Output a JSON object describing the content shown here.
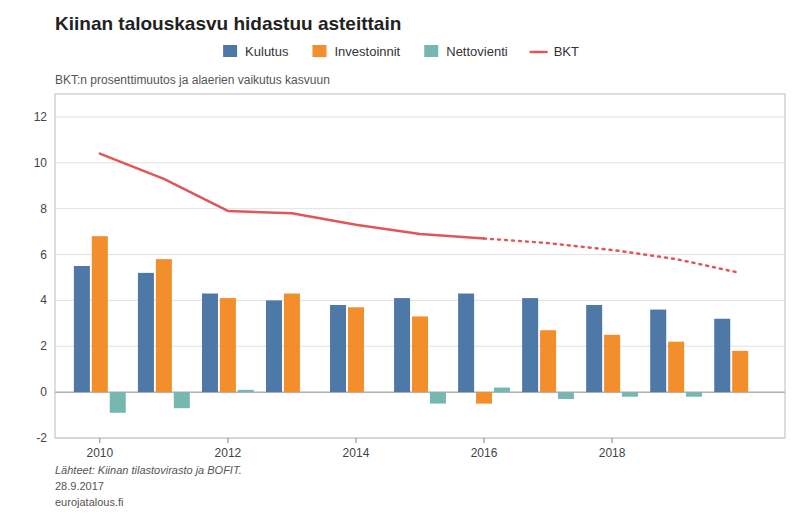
{
  "chart_data": {
    "type": "bar",
    "title": "Kiinan talouskasvu hidastuu asteittain",
    "subtitle": "BKT:n prosenttimuutos ja alaerien vaikutus kasvuun",
    "x": [
      2010,
      2011,
      2012,
      2013,
      2014,
      2015,
      2016,
      2017,
      2018,
      2019,
      2020
    ],
    "xlim": [
      2009.3,
      2020.7
    ],
    "xticks": [
      2010,
      2012,
      2014,
      2016,
      2018
    ],
    "ylim": [
      -2,
      13
    ],
    "yticks": [
      -2,
      0,
      2,
      4,
      6,
      8,
      10,
      12
    ],
    "grid": true,
    "legend": "top",
    "series": [
      {
        "name": "Kulutus",
        "type": "bar",
        "color": "#4e79a7",
        "values": [
          5.5,
          5.2,
          4.3,
          4.0,
          3.8,
          4.1,
          4.3,
          4.1,
          3.8,
          3.6,
          3.2
        ]
      },
      {
        "name": "Investoinnit",
        "type": "bar",
        "color": "#f28e2b",
        "values": [
          6.8,
          5.8,
          4.1,
          4.3,
          3.7,
          3.3,
          -0.5,
          2.7,
          2.5,
          2.2,
          1.8
        ]
      },
      {
        "name": "Nettovienti",
        "type": "bar",
        "color": "#76b7b2",
        "values": [
          -0.9,
          -0.7,
          0.1,
          0.0,
          0.0,
          -0.5,
          0.2,
          -0.3,
          -0.2,
          -0.2,
          0.0
        ]
      },
      {
        "name": "BKT",
        "type": "line",
        "color": "#e15759",
        "line_style": "solid",
        "x": [
          2010,
          2011,
          2012,
          2013,
          2014,
          2015,
          2016
        ],
        "values": [
          10.4,
          9.3,
          7.9,
          7.8,
          7.3,
          6.9,
          6.7
        ]
      },
      {
        "name": "BKT",
        "type": "line",
        "color": "#e15759",
        "line_style": "dotted",
        "x": [
          2016,
          2017,
          2018,
          2019,
          2020
        ],
        "values": [
          6.7,
          6.5,
          6.2,
          5.8,
          5.2
        ]
      }
    ],
    "annotations": [
      "Lähteet: Kiinan tilastovirasto ja BOFIT.",
      "28.9.2017",
      "eurojatalous.fi"
    ]
  }
}
